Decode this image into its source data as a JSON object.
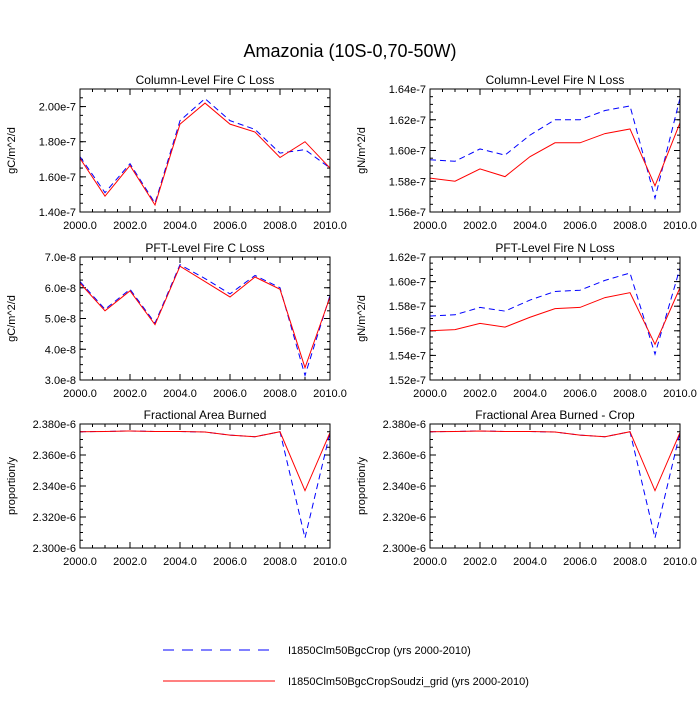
{
  "figure": {
    "title": "Amazonia (10S-0,70-50W)"
  },
  "legend": {
    "items": [
      {
        "label": "I1850Clm50BgcCrop (yrs 2000-2010)",
        "color": "#0000ff",
        "dash": "dashed"
      },
      {
        "label": "I1850Clm50BgcCropSoudzi_grid (yrs 2000-2010)",
        "color": "#ff0000",
        "dash": "solid"
      }
    ]
  },
  "chart_data": [
    {
      "type": "line",
      "title": "Column-Level Fire C Loss",
      "xlabel": "",
      "ylabel": "gC/m^2/d",
      "xlim": [
        2000,
        2010
      ],
      "ylim": [
        1.4e-07,
        2.1e-07
      ],
      "x_ticks": [
        2000,
        2002,
        2004,
        2006,
        2008,
        2010
      ],
      "x_tick_labels": [
        "2000.0",
        "2002.0",
        "2004.0",
        "2006.0",
        "2008.0",
        "2010.0"
      ],
      "y_ticks": [
        1.4e-07,
        1.6e-07,
        1.8e-07,
        2e-07
      ],
      "y_tick_labels": [
        "1.40e-7",
        "1.60e-7",
        "1.80e-7",
        "2.00e-7"
      ],
      "x": [
        2000,
        2001,
        2002,
        2003,
        2004,
        2005,
        2006,
        2007,
        2008,
        2009,
        2010
      ],
      "series": [
        {
          "name": "I1850Clm50BgcCrop (yrs 2000-2010)",
          "color": "#0000ff",
          "dash": "dashed",
          "values": [
            1.715e-07,
            1.51e-07,
            1.675e-07,
            1.45e-07,
            1.92e-07,
            2.045e-07,
            1.92e-07,
            1.87e-07,
            1.735e-07,
            1.755e-07,
            1.65e-07
          ]
        },
        {
          "name": "I1850Clm50BgcCropSoudzi_grid (yrs 2000-2010)",
          "color": "#ff0000",
          "dash": "solid",
          "values": [
            1.705e-07,
            1.49e-07,
            1.665e-07,
            1.44e-07,
            1.9e-07,
            2.02e-07,
            1.9e-07,
            1.855e-07,
            1.71e-07,
            1.8e-07,
            1.65e-07
          ]
        }
      ]
    },
    {
      "type": "line",
      "title": "Column-Level Fire N Loss",
      "xlabel": "",
      "ylabel": "gN/m^2/d",
      "xlim": [
        2000,
        2010
      ],
      "ylim": [
        1.56e-07,
        1.64e-07
      ],
      "x_ticks": [
        2000,
        2002,
        2004,
        2006,
        2008,
        2010
      ],
      "x_tick_labels": [
        "2000.0",
        "2002.0",
        "2004.0",
        "2006.0",
        "2008.0",
        "2010.0"
      ],
      "y_ticks": [
        1.56e-07,
        1.58e-07,
        1.6e-07,
        1.62e-07,
        1.64e-07
      ],
      "y_tick_labels": [
        "1.56e-7",
        "1.58e-7",
        "1.60e-7",
        "1.62e-7",
        "1.64e-7"
      ],
      "x": [
        2000,
        2001,
        2002,
        2003,
        2004,
        2005,
        2006,
        2007,
        2008,
        2009,
        2010
      ],
      "series": [
        {
          "name": "I1850Clm50BgcCrop (yrs 2000-2010)",
          "color": "#0000ff",
          "dash": "dashed",
          "values": [
            1.594e-07,
            1.593e-07,
            1.601e-07,
            1.597e-07,
            1.61e-07,
            1.62e-07,
            1.62e-07,
            1.626e-07,
            1.629e-07,
            1.569e-07,
            1.634e-07
          ]
        },
        {
          "name": "I1850Clm50BgcCropSoudzi_grid (yrs 2000-2010)",
          "color": "#ff0000",
          "dash": "solid",
          "values": [
            1.582e-07,
            1.58e-07,
            1.588e-07,
            1.583e-07,
            1.596e-07,
            1.605e-07,
            1.605e-07,
            1.611e-07,
            1.614e-07,
            1.577e-07,
            1.618e-07
          ]
        }
      ]
    },
    {
      "type": "line",
      "title": "PFT-Level Fire C Loss",
      "xlabel": "",
      "ylabel": "gC/m^2/d",
      "xlim": [
        2000,
        2010
      ],
      "ylim": [
        3e-08,
        7e-08
      ],
      "x_ticks": [
        2000,
        2002,
        2004,
        2006,
        2008,
        2010
      ],
      "x_tick_labels": [
        "2000.0",
        "2002.0",
        "2004.0",
        "2006.0",
        "2008.0",
        "2010.0"
      ],
      "y_ticks": [
        3e-08,
        4e-08,
        5e-08,
        6e-08,
        7e-08
      ],
      "y_tick_labels": [
        "3.0e-8",
        "4.0e-8",
        "5.0e-8",
        "6.0e-8",
        "7.0e-8"
      ],
      "x": [
        2000,
        2001,
        2002,
        2003,
        2004,
        2005,
        2006,
        2007,
        2008,
        2009,
        2010
      ],
      "series": [
        {
          "name": "I1850Clm50BgcCrop (yrs 2000-2010)",
          "color": "#0000ff",
          "dash": "dashed",
          "values": [
            6.2e-08,
            5.3e-08,
            5.95e-08,
            4.85e-08,
            6.75e-08,
            6.3e-08,
            5.8e-08,
            6.4e-08,
            6e-08,
            3.15e-08,
            5.75e-08
          ]
        },
        {
          "name": "I1850Clm50BgcCropSoudzi_grid (yrs 2000-2010)",
          "color": "#ff0000",
          "dash": "solid",
          "values": [
            6.15e-08,
            5.25e-08,
            5.9e-08,
            4.8e-08,
            6.7e-08,
            6.2e-08,
            5.7e-08,
            6.35e-08,
            5.95e-08,
            3.4e-08,
            5.7e-08
          ]
        }
      ]
    },
    {
      "type": "line",
      "title": "PFT-Level Fire N Loss",
      "xlabel": "",
      "ylabel": "gN/m^2/d",
      "xlim": [
        2000,
        2010
      ],
      "ylim": [
        1.52e-07,
        1.62e-07
      ],
      "x_ticks": [
        2000,
        2002,
        2004,
        2006,
        2008,
        2010
      ],
      "x_tick_labels": [
        "2000.0",
        "2002.0",
        "2004.0",
        "2006.0",
        "2008.0",
        "2010.0"
      ],
      "y_ticks": [
        1.52e-07,
        1.54e-07,
        1.56e-07,
        1.58e-07,
        1.6e-07,
        1.62e-07
      ],
      "y_tick_labels": [
        "1.52e-7",
        "1.54e-7",
        "1.56e-7",
        "1.58e-7",
        "1.60e-7",
        "1.62e-7"
      ],
      "x": [
        2000,
        2001,
        2002,
        2003,
        2004,
        2005,
        2006,
        2007,
        2008,
        2009,
        2010
      ],
      "series": [
        {
          "name": "I1850Clm50BgcCrop (yrs 2000-2010)",
          "color": "#0000ff",
          "dash": "dashed",
          "values": [
            1.572e-07,
            1.573e-07,
            1.579e-07,
            1.576e-07,
            1.585e-07,
            1.592e-07,
            1.593e-07,
            1.601e-07,
            1.607e-07,
            1.541e-07,
            1.611e-07
          ]
        },
        {
          "name": "I1850Clm50BgcCropSoudzi_grid (yrs 2000-2010)",
          "color": "#ff0000",
          "dash": "solid",
          "values": [
            1.56e-07,
            1.561e-07,
            1.566e-07,
            1.563e-07,
            1.571e-07,
            1.578e-07,
            1.579e-07,
            1.587e-07,
            1.591e-07,
            1.549e-07,
            1.595e-07
          ]
        }
      ]
    },
    {
      "type": "line",
      "title": "Fractional Area Burned",
      "xlabel": "",
      "ylabel": "proportion/y",
      "xlim": [
        2000,
        2010
      ],
      "ylim": [
        2.3e-06,
        2.38e-06
      ],
      "x_ticks": [
        2000,
        2002,
        2004,
        2006,
        2008,
        2010
      ],
      "x_tick_labels": [
        "2000.0",
        "2002.0",
        "2004.0",
        "2006.0",
        "2008.0",
        "2010.0"
      ],
      "y_ticks": [
        2.3e-06,
        2.32e-06,
        2.34e-06,
        2.36e-06,
        2.38e-06
      ],
      "y_tick_labels": [
        "2.300e-6",
        "2.320e-6",
        "2.340e-6",
        "2.360e-6",
        "2.380e-6"
      ],
      "x": [
        2000,
        2001,
        2002,
        2003,
        2004,
        2005,
        2006,
        2007,
        2008,
        2009,
        2010
      ],
      "series": [
        {
          "name": "I1850Clm50BgcCrop (yrs 2000-2010)",
          "color": "#0000ff",
          "dash": "dashed",
          "values": [
            2.375e-06,
            2.3752e-06,
            2.3755e-06,
            2.3752e-06,
            2.3752e-06,
            2.3748e-06,
            2.3728e-06,
            2.3718e-06,
            2.375e-06,
            2.3065e-06,
            2.3745e-06
          ]
        },
        {
          "name": "I1850Clm50BgcCropSoudzi_grid (yrs 2000-2010)",
          "color": "#ff0000",
          "dash": "solid",
          "values": [
            2.375e-06,
            2.3752e-06,
            2.3755e-06,
            2.3752e-06,
            2.3752e-06,
            2.3748e-06,
            2.3728e-06,
            2.3718e-06,
            2.375e-06,
            2.337e-06,
            2.3745e-06
          ]
        }
      ]
    },
    {
      "type": "line",
      "title": "Fractional Area Burned - Crop",
      "xlabel": "",
      "ylabel": "proportion/y",
      "xlim": [
        2000,
        2010
      ],
      "ylim": [
        2.3e-06,
        2.38e-06
      ],
      "x_ticks": [
        2000,
        2002,
        2004,
        2006,
        2008,
        2010
      ],
      "x_tick_labels": [
        "2000.0",
        "2002.0",
        "2004.0",
        "2006.0",
        "2008.0",
        "2010.0"
      ],
      "y_ticks": [
        2.3e-06,
        2.32e-06,
        2.34e-06,
        2.36e-06,
        2.38e-06
      ],
      "y_tick_labels": [
        "2.300e-6",
        "2.320e-6",
        "2.340e-6",
        "2.360e-6",
        "2.380e-6"
      ],
      "x": [
        2000,
        2001,
        2002,
        2003,
        2004,
        2005,
        2006,
        2007,
        2008,
        2009,
        2010
      ],
      "series": [
        {
          "name": "I1850Clm50BgcCrop (yrs 2000-2010)",
          "color": "#0000ff",
          "dash": "dashed",
          "values": [
            2.375e-06,
            2.3752e-06,
            2.3755e-06,
            2.3752e-06,
            2.3752e-06,
            2.3748e-06,
            2.3728e-06,
            2.3718e-06,
            2.375e-06,
            2.3065e-06,
            2.3745e-06
          ]
        },
        {
          "name": "I1850Clm50BgcCropSoudzi_grid (yrs 2000-2010)",
          "color": "#ff0000",
          "dash": "solid",
          "values": [
            2.375e-06,
            2.3752e-06,
            2.3755e-06,
            2.3752e-06,
            2.3752e-06,
            2.3748e-06,
            2.3728e-06,
            2.3718e-06,
            2.375e-06,
            2.337e-06,
            2.3745e-06
          ]
        }
      ]
    }
  ]
}
